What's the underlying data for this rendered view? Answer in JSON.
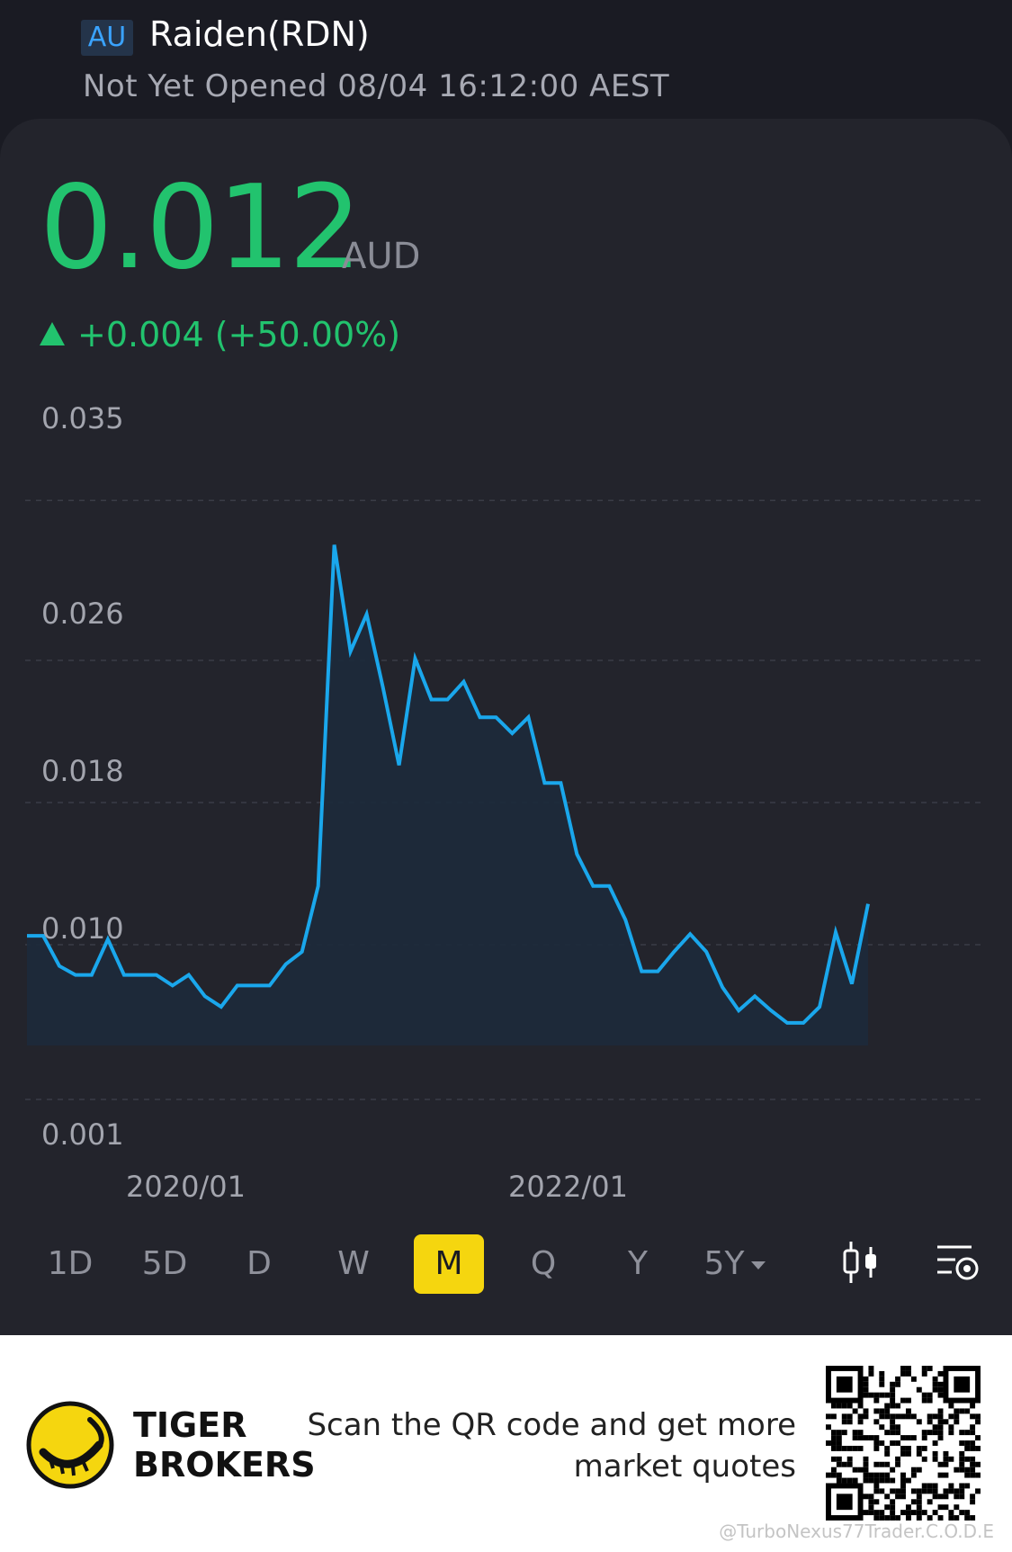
{
  "header": {
    "market": "AU",
    "name": "Raiden(RDN)",
    "status": "Not Yet Opened 08/04 16:12:00 AEST"
  },
  "quote": {
    "price": "0.012",
    "currency": "AUD",
    "change": "+0.004 (+50.00%)",
    "direction": "up",
    "color_up": "#22c36e"
  },
  "chart_data": {
    "type": "area",
    "title": "",
    "xlabel": "",
    "ylabel": "",
    "y_ticks": [
      "0.035",
      "0.026",
      "0.018",
      "0.010",
      "0.001"
    ],
    "x_ticks": [
      "2020/01",
      "2022/01"
    ],
    "ylim": [
      0.001,
      0.035
    ],
    "line_color": "#1aa7ec",
    "grid": true,
    "series": [
      {
        "values": [
          0.0105,
          0.0105,
          0.0088,
          0.0083,
          0.0083,
          0.0103,
          0.0083,
          0.0083,
          0.0083,
          0.0077,
          0.0083,
          0.0071,
          0.0065,
          0.0077,
          0.0077,
          0.0077,
          0.0089,
          0.0096,
          0.0133,
          0.0325,
          0.0265,
          0.0286,
          0.0245,
          0.0201,
          0.0261,
          0.0238,
          0.0238,
          0.0248,
          0.0228,
          0.0228,
          0.0219,
          0.0228,
          0.0191,
          0.0191,
          0.0151,
          0.0133,
          0.0133,
          0.0114,
          0.0085,
          0.0085,
          0.0096,
          0.0106,
          0.0096,
          0.0076,
          0.0063,
          0.0071,
          0.0063,
          0.0056,
          0.0056,
          0.0065,
          0.0107,
          0.0078,
          0.0123
        ]
      }
    ]
  },
  "periods": [
    "1D",
    "5D",
    "D",
    "W",
    "M",
    "Q",
    "Y",
    "5Y"
  ],
  "active_period": "M",
  "footer": {
    "brand_line1": "TIGER",
    "brand_line2": "BROKERS",
    "promo_line1": "Scan the QR code and get more",
    "promo_line2": "market quotes",
    "watermark": "@TurboNexus77Trader.C.O.D.E"
  }
}
